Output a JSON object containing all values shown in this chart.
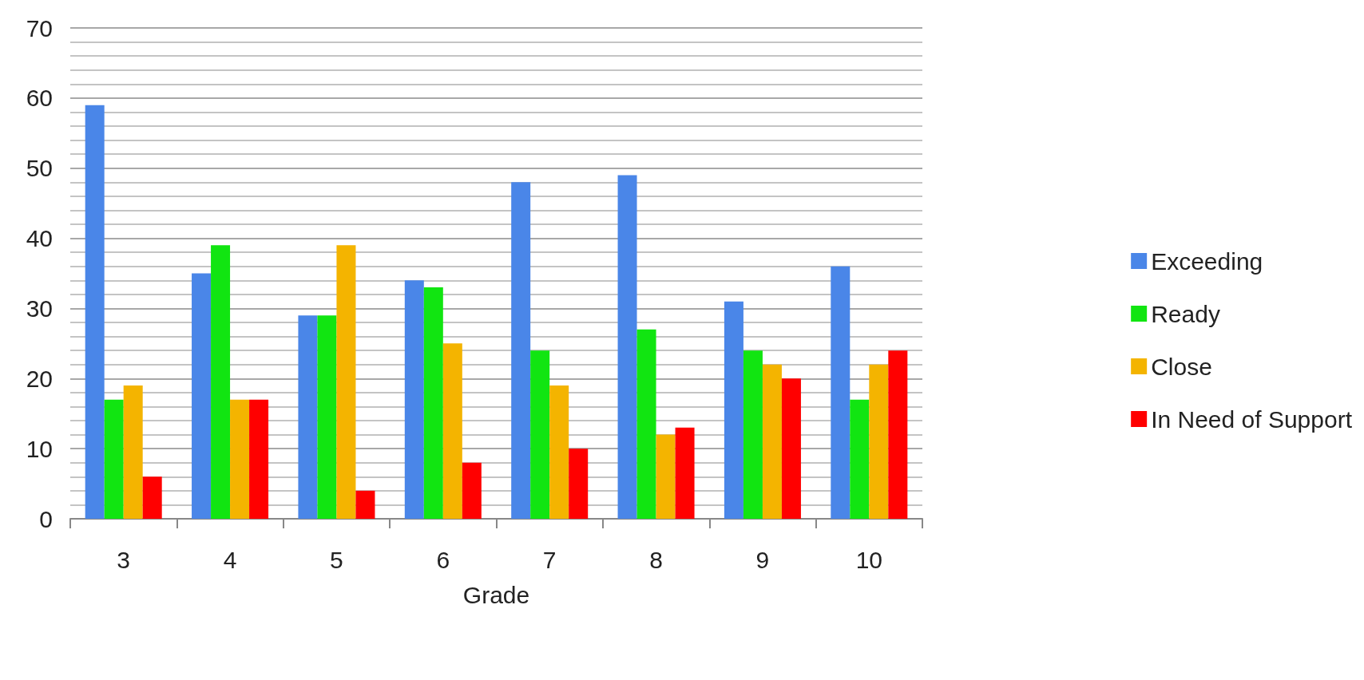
{
  "chart_data": {
    "type": "bar",
    "xlabel": "Grade",
    "categories": [
      "3",
      "4",
      "5",
      "6",
      "7",
      "8",
      "9",
      "10"
    ],
    "series": [
      {
        "name": "Exceeding",
        "color": "#4a86e8",
        "values": [
          59,
          35,
          29,
          34,
          48,
          49,
          31,
          36
        ]
      },
      {
        "name": "Ready",
        "color": "#11e511",
        "values": [
          17,
          39,
          29,
          33,
          24,
          27,
          24,
          17
        ]
      },
      {
        "name": "Close",
        "color": "#f4b400",
        "values": [
          19,
          17,
          39,
          25,
          19,
          12,
          22,
          22
        ]
      },
      {
        "name": "In Need of Support",
        "color": "#ff0000",
        "values": [
          6,
          17,
          4,
          8,
          10,
          13,
          20,
          24
        ]
      }
    ],
    "ylim": [
      0,
      70
    ],
    "yticks": [
      0,
      10,
      20,
      30,
      40,
      50,
      60,
      70
    ],
    "grid": "y",
    "legend": "right"
  }
}
